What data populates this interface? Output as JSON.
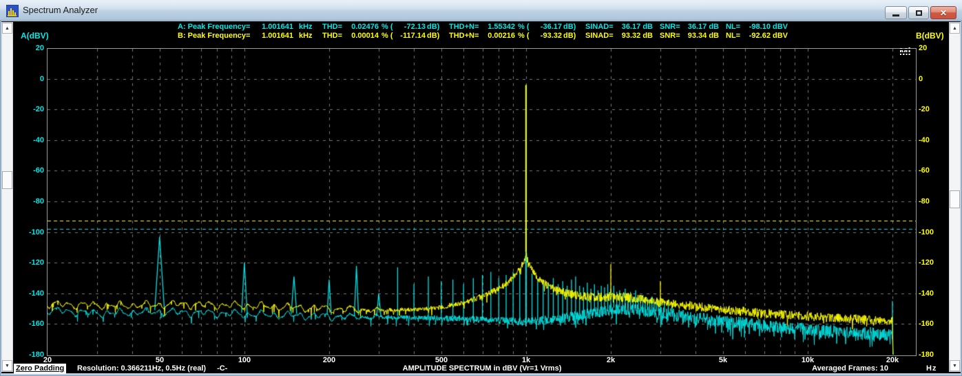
{
  "window": {
    "title": "Spectrum Analyzer"
  },
  "icons": {
    "close": "✕",
    "scroll_up": "▲",
    "scroll_down": "▼"
  },
  "logo": "Mi",
  "readouts": {
    "a_cells": [
      "A: Peak Frequency=",
      "1.001641",
      "kHz",
      "THD=",
      "0.02476",
      "% (",
      "-72.13",
      "dB)",
      "THD+N=",
      "1.55342",
      "% (",
      "-36.17",
      "dB)",
      "SINAD=",
      "36.17 dB",
      "SNR=",
      "36.17 dB",
      "NL=",
      "-98.10 dBV"
    ],
    "b_cells": [
      "B: Peak Frequency=",
      "1.001641",
      "kHz",
      "THD=",
      "0.00014",
      "% (",
      "-117.14",
      "dB)",
      "THD+N=",
      "0.00216",
      "% (",
      "-93.32",
      "dB)",
      "SINAD=",
      "93.32 dB",
      "SNR=",
      "93.34 dB",
      "NL=",
      "-92.62 dBV"
    ]
  },
  "axes": {
    "left_label": "A(dBV)",
    "right_label": "B(dBV)",
    "x_unit": "Hz",
    "y_ticks": [
      20,
      0,
      -20,
      -40,
      -60,
      -80,
      -100,
      -120,
      -140,
      -160,
      -180
    ],
    "x_ticks": [
      {
        "f": 20,
        "label": "20"
      },
      {
        "f": 50,
        "label": "50"
      },
      {
        "f": 100,
        "label": "100"
      },
      {
        "f": 200,
        "label": "200"
      },
      {
        "f": 500,
        "label": "500"
      },
      {
        "f": 1000,
        "label": "1k"
      },
      {
        "f": 2000,
        "label": "2k"
      },
      {
        "f": 5000,
        "label": "5k"
      },
      {
        "f": 10000,
        "label": "10k"
      },
      {
        "f": 20000,
        "label": "20k"
      }
    ]
  },
  "status_bar": {
    "mode": "Zero Padding",
    "resolution": "Resolution: 0.366211Hz, 0.5Hz (real)",
    "marker": "-C-",
    "title": "AMPLITUDE SPECTRUM in dBV (Vr=1 Vrms)",
    "averaged": "Averaged Frames: 10"
  },
  "colors": {
    "trace_a": "#00e4e4",
    "trace_b": "#ffff00",
    "grid": "#7a7a7a",
    "plot_bg": "#000000",
    "readout_a": "#00e8e8",
    "readout_b": "#ffff00"
  },
  "chart_data": {
    "type": "line",
    "title": "AMPLITUDE SPECTRUM in dBV (Vr=1 Vrms)",
    "xlabel": "Hz",
    "ylabel": "dBV",
    "x_axis": {
      "scale": "log",
      "min_hz": 20,
      "max_hz": 20000,
      "gridlines_hz": [
        30,
        40,
        50,
        60,
        70,
        80,
        90,
        100,
        200,
        300,
        400,
        500,
        600,
        700,
        800,
        900,
        1000,
        2000,
        3000,
        4000,
        5000,
        6000,
        7000,
        8000,
        9000,
        10000,
        20000
      ]
    },
    "y_axis": {
      "min": -180,
      "max": 20,
      "grid_step": 20
    },
    "series": [
      {
        "name": "A",
        "color": "#00e4e4",
        "peak_frequency_khz": 1.001641,
        "nl_line_dbv": -98.1,
        "noise_floor_dbv": [
          [
            20,
            -151
          ],
          [
            30,
            -153
          ],
          [
            50,
            -152
          ],
          [
            80,
            -153
          ],
          [
            120,
            -154
          ],
          [
            200,
            -155
          ],
          [
            300,
            -155.5
          ],
          [
            500,
            -156
          ],
          [
            700,
            -157
          ],
          [
            900,
            -158
          ],
          [
            1000,
            -158.5
          ],
          [
            1100,
            -158
          ],
          [
            1300,
            -156.5
          ],
          [
            1600,
            -154
          ],
          [
            1900,
            -151.5
          ],
          [
            2100,
            -150
          ],
          [
            2400,
            -150.5
          ],
          [
            3000,
            -153
          ],
          [
            4000,
            -156
          ],
          [
            5000,
            -158.5
          ],
          [
            7000,
            -161
          ],
          [
            10000,
            -163.5
          ],
          [
            14000,
            -165.5
          ],
          [
            20000,
            -167
          ]
        ],
        "peaks_dbv": [
          [
            50,
            -103
          ],
          [
            100,
            -120
          ],
          [
            150,
            -129
          ],
          [
            200,
            -131
          ],
          [
            250,
            -122
          ],
          [
            300,
            -140
          ],
          [
            350,
            -123
          ],
          [
            400,
            -134
          ],
          [
            450,
            -129
          ],
          [
            500,
            -132
          ],
          [
            550,
            -131
          ],
          [
            600,
            -134
          ],
          [
            650,
            -130
          ],
          [
            700,
            -128
          ],
          [
            750,
            -126
          ],
          [
            800,
            -130
          ],
          [
            850,
            -128
          ],
          [
            900,
            -126
          ],
          [
            950,
            -124
          ],
          [
            1000,
            -4.5
          ],
          [
            1050,
            -127
          ],
          [
            1100,
            -131
          ],
          [
            1150,
            -132
          ],
          [
            1200,
            -133
          ],
          [
            1250,
            -130
          ],
          [
            1300,
            -134
          ],
          [
            1350,
            -132
          ],
          [
            1400,
            -135
          ],
          [
            1450,
            -131
          ],
          [
            1500,
            -129
          ],
          [
            1550,
            -135
          ],
          [
            1600,
            -136
          ],
          [
            1650,
            -133
          ],
          [
            1700,
            -137
          ],
          [
            1750,
            -134
          ],
          [
            1800,
            -138
          ],
          [
            1850,
            -135
          ],
          [
            1900,
            -136
          ],
          [
            1950,
            -134
          ],
          [
            2000,
            -137
          ],
          [
            2050,
            -135
          ],
          [
            2100,
            -139
          ],
          [
            2150,
            -138
          ],
          [
            2200,
            -140
          ],
          [
            2250,
            -137
          ],
          [
            2300,
            -141
          ],
          [
            2350,
            -139
          ],
          [
            2400,
            -142
          ],
          [
            2450,
            -138
          ],
          [
            2500,
            -143
          ],
          [
            2550,
            -141
          ],
          [
            2600,
            -141
          ],
          [
            2650,
            -144
          ],
          [
            2700,
            -143
          ],
          [
            2750,
            -145
          ],
          [
            2800,
            -142
          ],
          [
            2850,
            -146
          ],
          [
            2900,
            -144
          ],
          [
            2950,
            -147
          ],
          [
            3000,
            -143
          ],
          [
            3100,
            -146
          ],
          [
            3200,
            -144
          ],
          [
            3300,
            -148
          ],
          [
            20000,
            -145
          ]
        ]
      },
      {
        "name": "B",
        "color": "#ffff00",
        "peak_frequency_khz": 1.001641,
        "nl_line_dbv": -92.62,
        "noise_floor_dbv": [
          [
            20,
            -147
          ],
          [
            35,
            -148
          ],
          [
            60,
            -147
          ],
          [
            100,
            -148
          ],
          [
            150,
            -149
          ],
          [
            200,
            -150
          ],
          [
            300,
            -151
          ],
          [
            420,
            -150.5
          ],
          [
            500,
            -149
          ],
          [
            600,
            -146
          ],
          [
            700,
            -142
          ],
          [
            800,
            -137
          ],
          [
            860,
            -133
          ],
          [
            920,
            -128
          ],
          [
            960,
            -123
          ],
          [
            985,
            -118
          ],
          [
            1000,
            -114
          ],
          [
            1015,
            -118
          ],
          [
            1040,
            -123
          ],
          [
            1080,
            -128
          ],
          [
            1150,
            -133
          ],
          [
            1250,
            -137
          ],
          [
            1400,
            -140
          ],
          [
            1600,
            -142
          ],
          [
            1800,
            -142.5
          ],
          [
            2000,
            -142
          ],
          [
            2300,
            -142.5
          ],
          [
            2600,
            -144
          ],
          [
            3000,
            -146
          ],
          [
            4000,
            -148.5
          ],
          [
            5000,
            -150.5
          ],
          [
            7000,
            -153
          ],
          [
            10000,
            -155
          ],
          [
            14000,
            -156.5
          ],
          [
            20000,
            -158
          ]
        ],
        "peaks_dbv": [
          [
            1000,
            -4
          ],
          [
            2000,
            -121
          ],
          [
            3000,
            -132
          ]
        ]
      }
    ]
  }
}
